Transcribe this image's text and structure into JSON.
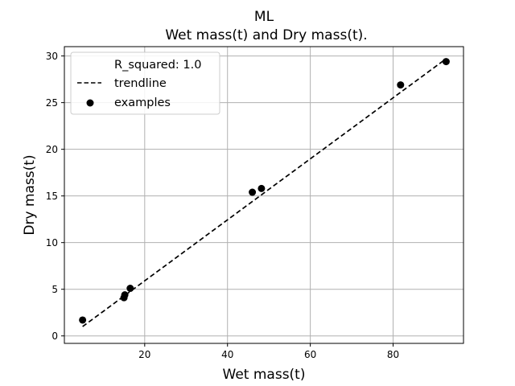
{
  "chart_data": {
    "type": "scatter",
    "title": "ML",
    "subtitle": "Wet mass(t) and Dry mass(t).",
    "xlabel": "Wet mass(t)",
    "ylabel": "Dry mass(t)",
    "xlim": [
      0.6,
      97.0
    ],
    "ylim": [
      -0.8,
      31.0
    ],
    "xticks": [
      20,
      40,
      60,
      80
    ],
    "yticks": [
      0,
      5,
      10,
      15,
      20,
      25,
      30
    ],
    "grid": true,
    "legend_position": "upper-left",
    "legend": {
      "r_squared_label": "R_squared: 1.0",
      "trendline_label": "trendline",
      "examples_label": "examples"
    },
    "series": [
      {
        "name": "examples",
        "kind": "scatter",
        "color": "#000000",
        "x": [
          5.0,
          15.0,
          15.2,
          16.5,
          46.0,
          48.2,
          81.8,
          92.8
        ],
        "y": [
          1.7,
          4.1,
          4.4,
          5.1,
          15.4,
          15.8,
          26.9,
          29.4
        ]
      },
      {
        "name": "trendline",
        "kind": "line",
        "style": "dashed",
        "color": "#000000",
        "x": [
          5.0,
          92.8
        ],
        "y": [
          1.0,
          29.7
        ]
      }
    ]
  }
}
